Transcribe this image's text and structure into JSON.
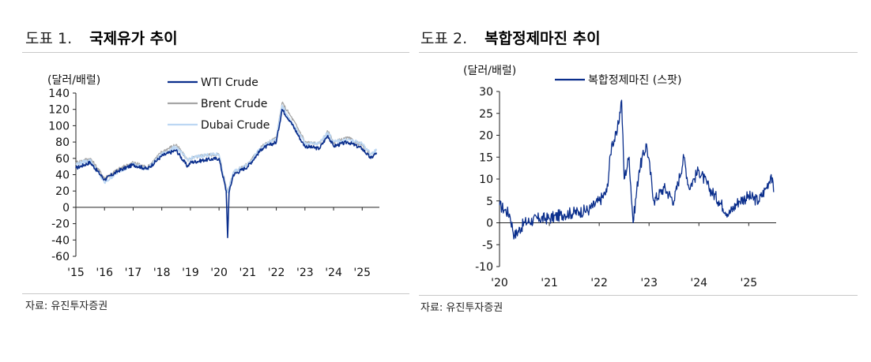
{
  "panel1": {
    "number": "도표 1.",
    "title": "국제유가 추이",
    "source": "자료: 유진투자증권"
  },
  "panel2": {
    "number": "도표 2.",
    "title": "복합정제마진 추이",
    "source": "자료: 유진투자증권"
  },
  "colors": {
    "wti": "#0a2e8c",
    "brent": "#a6a6a6",
    "dubai": "#bcd7f3",
    "margin": "#0a2e8c"
  },
  "chart_data": [
    {
      "type": "line",
      "unit_label": "(달러/배럴)",
      "x_tick_labels": [
        "'15",
        "'16",
        "'17",
        "'18",
        "'19",
        "'20",
        "'21",
        "'22",
        "'23",
        "'24",
        "'25"
      ],
      "x": [
        2015.0,
        2015.5,
        2016.0,
        2016.5,
        2017.0,
        2017.5,
        2018.0,
        2018.5,
        2018.9,
        2019.0,
        2019.5,
        2020.0,
        2020.25,
        2020.3,
        2020.35,
        2020.5,
        2021.0,
        2021.5,
        2022.0,
        2022.2,
        2022.5,
        2022.9,
        2023.0,
        2023.5,
        2023.8,
        2024.0,
        2024.5,
        2025.0,
        2025.3,
        2025.5
      ],
      "ylim": [
        -60,
        140
      ],
      "y_ticks": [
        140,
        120,
        100,
        80,
        60,
        40,
        20,
        0,
        -20,
        -40,
        -60
      ],
      "grid": false,
      "legend_position": "top-right",
      "series": [
        {
          "name": "WTI Crude",
          "values": [
            48,
            55,
            34,
            45,
            52,
            47,
            63,
            70,
            50,
            55,
            58,
            60,
            20,
            -37,
            18,
            40,
            50,
            72,
            80,
            120,
            105,
            80,
            75,
            72,
            88,
            75,
            80,
            72,
            60,
            67
          ]
        },
        {
          "name": "Brent Crude",
          "values": [
            55,
            60,
            36,
            47,
            55,
            49,
            68,
            77,
            58,
            60,
            64,
            65,
            25,
            20,
            25,
            43,
            53,
            75,
            85,
            128,
            112,
            88,
            80,
            78,
            93,
            80,
            85,
            76,
            65,
            70
          ]
        },
        {
          "name": "Dubai Crude",
          "values": [
            53,
            58,
            30,
            44,
            53,
            47,
            65,
            74,
            58,
            60,
            64,
            65,
            22,
            18,
            24,
            43,
            53,
            74,
            84,
            125,
            105,
            85,
            78,
            78,
            92,
            80,
            83,
            78,
            65,
            70
          ]
        }
      ]
    },
    {
      "type": "line",
      "unit_label": "(달러/배럴)",
      "x_tick_labels": [
        "'20",
        "'21",
        "'22",
        "'23",
        "'24",
        "'25"
      ],
      "x": [
        2020.0,
        2020.1,
        2020.2,
        2020.3,
        2020.5,
        2020.8,
        2021.0,
        2021.3,
        2021.6,
        2021.8,
        2022.0,
        2022.15,
        2022.25,
        2022.35,
        2022.45,
        2022.5,
        2022.6,
        2022.68,
        2022.8,
        2022.95,
        2023.1,
        2023.3,
        2023.5,
        2023.7,
        2023.8,
        2023.9,
        2024.0,
        2024.2,
        2024.4,
        2024.6,
        2024.8,
        2025.0,
        2025.2,
        2025.35,
        2025.45,
        2025.5
      ],
      "ylim": [
        -10,
        30
      ],
      "y_ticks": [
        30,
        25,
        20,
        15,
        10,
        5,
        0,
        -5,
        -10
      ],
      "grid": false,
      "legend_position": "top-left",
      "series": [
        {
          "name": "복합정제마진 (스팟)",
          "values": [
            4,
            3,
            2,
            -3,
            0,
            1,
            1,
            2,
            2.5,
            3,
            5,
            7,
            18,
            20,
            28,
            10,
            15,
            0,
            12,
            18,
            5,
            8,
            5,
            15,
            8,
            10,
            12,
            8,
            5,
            2,
            5,
            6,
            5,
            8,
            11,
            7
          ]
        }
      ]
    }
  ]
}
